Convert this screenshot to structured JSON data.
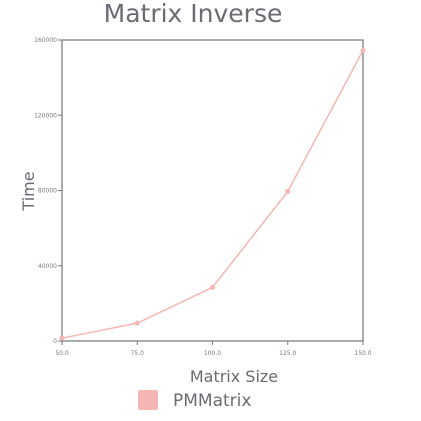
{
  "chart_data": {
    "type": "line",
    "title": "Matrix Inverse",
    "xlabel": "Matrix Size",
    "ylabel": "Time",
    "x": [
      50.0,
      75.0,
      100.0,
      125.0,
      150.0
    ],
    "x_tick_labels": [
      "50.0",
      "75.0",
      "100.0",
      "125.0",
      "150.0"
    ],
    "xlim": [
      50.0,
      150.0
    ],
    "ylim": [
      0,
      160000
    ],
    "y_ticks": [
      0,
      40000,
      80000,
      120000,
      160000
    ],
    "y_tick_labels": [
      "0",
      "40000",
      "80000",
      "120000",
      "160000"
    ],
    "series": [
      {
        "name": "PMMatrix",
        "color": "#f4b6b2",
        "values": [
          1500,
          9500,
          28500,
          79500,
          154500
        ]
      }
    ],
    "legend_position": "bottom-center",
    "grid": false
  }
}
